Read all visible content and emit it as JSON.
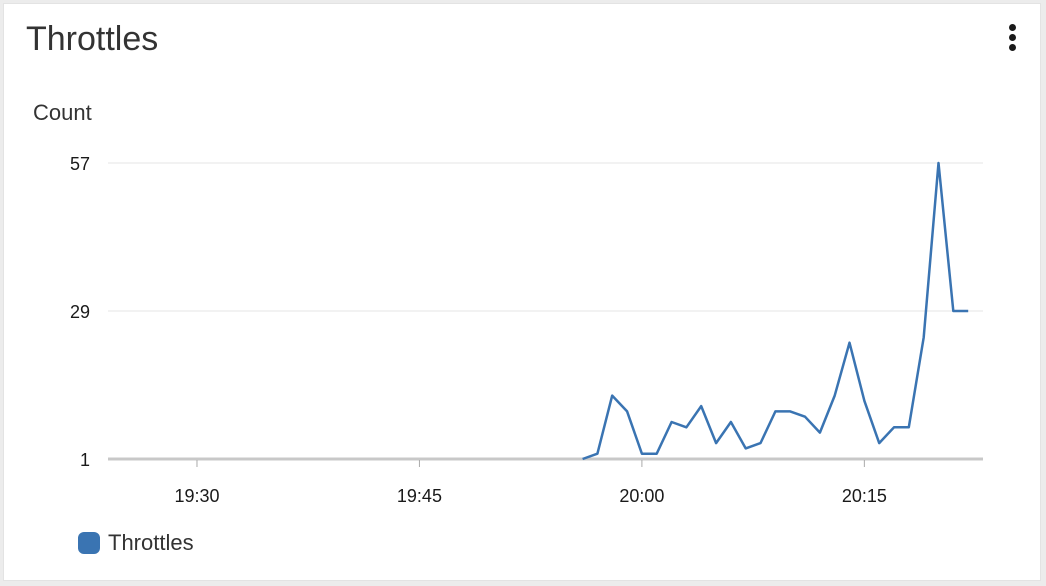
{
  "widget": {
    "title": "Throttles"
  },
  "chart_data": {
    "type": "line",
    "title": "Throttles",
    "ylabel": "Count",
    "xlabel": "",
    "y_ticks": [
      1,
      29,
      57
    ],
    "ylim": [
      1,
      57
    ],
    "x_ticks": [
      "19:30",
      "19:45",
      "20:00",
      "20:15"
    ],
    "x_range": [
      "19:24",
      "20:23"
    ],
    "grid": true,
    "legend_position": "bottom-left",
    "series": [
      {
        "name": "Throttles",
        "color": "#3a74b2",
        "x": [
          "19:56",
          "19:57",
          "19:58",
          "19:59",
          "20:00",
          "20:01",
          "20:02",
          "20:03",
          "20:04",
          "20:05",
          "20:06",
          "20:07",
          "20:08",
          "20:09",
          "20:10",
          "20:11",
          "20:12",
          "20:13",
          "20:14",
          "20:15",
          "20:16",
          "20:17",
          "20:18",
          "20:19",
          "20:20",
          "20:21",
          "20:22"
        ],
        "values": [
          1,
          2,
          13,
          10,
          2,
          2,
          8,
          7,
          11,
          4,
          8,
          3,
          4,
          10,
          10,
          9,
          6,
          13,
          23,
          12,
          4,
          7,
          7,
          24,
          57,
          29,
          29
        ]
      }
    ]
  },
  "legend": {
    "items": [
      {
        "label": "Throttles",
        "color": "#3a74b2"
      }
    ]
  }
}
